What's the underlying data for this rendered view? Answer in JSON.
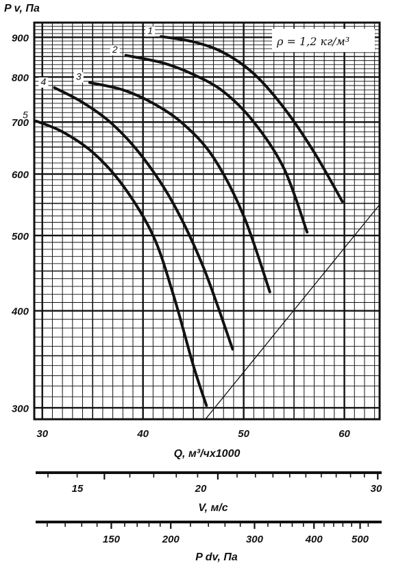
{
  "chart_data": {
    "type": "line",
    "y_axis": {
      "title": "P v, Па",
      "scale": "log",
      "range": [
        290,
        940
      ],
      "ticks": [
        300,
        400,
        500,
        600,
        700,
        800,
        900
      ],
      "tick_labels": [
        "300",
        "400",
        "500",
        "600",
        "700",
        "800",
        "900"
      ]
    },
    "x_axis": {
      "title": "Q, м³/чх1000",
      "range": [
        29.2,
        63.5
      ],
      "ticks": [
        30,
        40,
        50,
        60
      ],
      "tick_labels": [
        "30",
        "40",
        "50",
        "60"
      ]
    },
    "secondary_axes": [
      {
        "title": "V, м/с",
        "ticks": [
          15,
          20,
          30
        ],
        "tick_labels": [
          "15",
          "20",
          "30"
        ],
        "minor_ticks": [
          13,
          14,
          15,
          16,
          17,
          18,
          19,
          20,
          21,
          22,
          23,
          24,
          25,
          26,
          27,
          28,
          29,
          30
        ]
      },
      {
        "title": "P dv, Па",
        "ticks": [
          150,
          200,
          300,
          400,
          500
        ],
        "tick_labels": [
          "150",
          "200",
          "300",
          "400",
          "500"
        ],
        "minor_ticks": [
          110,
          120,
          130,
          140,
          150,
          160,
          170,
          180,
          190,
          200,
          220,
          240,
          260,
          280,
          300,
          320,
          340,
          360,
          380,
          400,
          420,
          440,
          460,
          480,
          500,
          520
        ]
      }
    ],
    "annotation": "ρ = 1,2 кг/м³",
    "series": [
      {
        "name": "1",
        "points": [
          [
            41.8,
            902
          ],
          [
            45,
            888
          ],
          [
            48,
            860
          ],
          [
            51,
            808
          ],
          [
            54,
            730
          ],
          [
            57,
            640
          ],
          [
            59.8,
            553
          ]
        ]
      },
      {
        "name": "2",
        "points": [
          [
            38.3,
            853
          ],
          [
            42,
            834
          ],
          [
            45,
            806
          ],
          [
            48,
            766
          ],
          [
            51,
            700
          ],
          [
            54,
            610
          ],
          [
            56.3,
            505
          ]
        ]
      },
      {
        "name": "3",
        "points": [
          [
            34.7,
            787
          ],
          [
            38,
            770
          ],
          [
            41,
            740
          ],
          [
            44,
            696
          ],
          [
            47,
            630
          ],
          [
            50,
            530
          ],
          [
            52.6,
            423
          ]
        ]
      },
      {
        "name": "4",
        "points": [
          [
            31.2,
            775
          ],
          [
            34,
            742
          ],
          [
            37,
            695
          ],
          [
            40,
            630
          ],
          [
            43,
            550
          ],
          [
            46,
            455
          ],
          [
            48.9,
            357
          ]
        ]
      },
      {
        "name": "5",
        "points": [
          [
            29.4,
            702
          ],
          [
            32,
            680
          ],
          [
            35,
            640
          ],
          [
            38,
            580
          ],
          [
            41,
            500
          ],
          [
            43,
            420
          ],
          [
            45,
            340
          ],
          [
            46.3,
            302
          ]
        ]
      }
    ],
    "boundary_line": [
      [
        46.2,
        290
      ],
      [
        63.5,
        548
      ]
    ]
  }
}
